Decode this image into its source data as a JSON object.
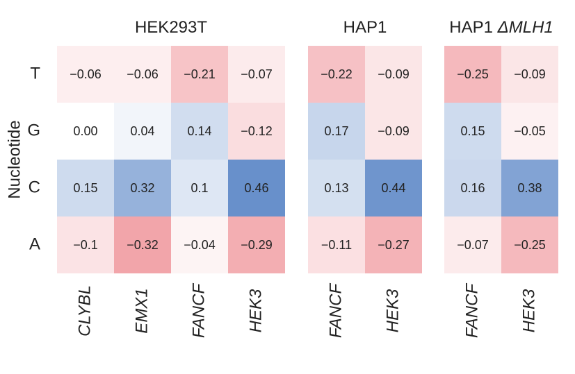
{
  "chart_data": {
    "type": "heatmap",
    "ylabel": "Nucleotide",
    "rows": [
      "T",
      "G",
      "C",
      "A"
    ],
    "color_scale": {
      "negative": "#EF8F95",
      "zero": "#FFFFFF",
      "positive": "#5B86C6",
      "min_value": -0.4,
      "max_value": 0.5
    },
    "panels": [
      {
        "title": "HEK293T",
        "title_italic_part": "",
        "columns": [
          "CLYBL",
          "EMX1",
          "FANCF",
          "HEK3"
        ],
        "values": [
          [
            -0.06,
            -0.06,
            -0.21,
            -0.07
          ],
          [
            0.0,
            0.04,
            0.14,
            -0.12
          ],
          [
            0.15,
            0.32,
            0.1,
            0.46
          ],
          [
            -0.1,
            -0.32,
            -0.04,
            -0.29
          ]
        ],
        "labels": [
          [
            "−0.06",
            "−0.06",
            "−0.21",
            "−0.07"
          ],
          [
            "0.00",
            "0.04",
            "0.14",
            "−0.12"
          ],
          [
            "0.15",
            "0.32",
            "0.1",
            "0.46"
          ],
          [
            "−0.1",
            "−0.32",
            "−0.04",
            "−0.29"
          ]
        ]
      },
      {
        "title": "HAP1",
        "title_italic_part": "",
        "columns": [
          "FANCF",
          "HEK3"
        ],
        "values": [
          [
            -0.22,
            -0.09
          ],
          [
            0.17,
            -0.09
          ],
          [
            0.13,
            0.44
          ],
          [
            -0.11,
            -0.27
          ]
        ],
        "labels": [
          [
            "−0.22",
            "−0.09"
          ],
          [
            "0.17",
            "−0.09"
          ],
          [
            "0.13",
            "0.44"
          ],
          [
            "−0.11",
            "−0.27"
          ]
        ]
      },
      {
        "title": "HAP1 ",
        "title_italic_part": "ΔMLH1",
        "columns": [
          "FANCF",
          "HEK3"
        ],
        "values": [
          [
            -0.25,
            -0.09
          ],
          [
            0.15,
            -0.05
          ],
          [
            0.16,
            0.38
          ],
          [
            -0.07,
            -0.25
          ]
        ],
        "labels": [
          [
            "−0.25",
            "−0.09"
          ],
          [
            "0.15",
            "−0.05"
          ],
          [
            "0.16",
            "0.38"
          ],
          [
            "−0.07",
            "−0.25"
          ]
        ]
      }
    ]
  }
}
